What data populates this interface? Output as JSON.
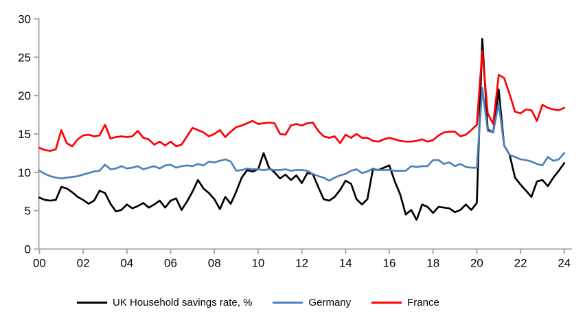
{
  "chart_data": {
    "type": "line",
    "title": "",
    "x_unit": "quarterly",
    "x_start_year": 2000,
    "x_end_year": 2024,
    "x_tick_years": [
      0,
      2,
      4,
      6,
      8,
      10,
      12,
      14,
      16,
      18,
      20,
      22,
      24
    ],
    "x_tick_labels": [
      "00",
      "02",
      "04",
      "06",
      "08",
      "10",
      "12",
      "14",
      "16",
      "18",
      "20",
      "22",
      "24"
    ],
    "ylim": [
      0,
      30
    ],
    "y_ticks": [
      0,
      5,
      10,
      15,
      20,
      25,
      30
    ],
    "y_tick_labels": [
      "0",
      "5",
      "10",
      "15",
      "20",
      "25",
      "30"
    ],
    "grid": false,
    "legend_position": "bottom",
    "axis_color": "#A6A6A6",
    "text_color": "#000000",
    "background": "#FFFFFF",
    "series": [
      {
        "name": "UK Household savings rate, %",
        "color": "#000000",
        "values": [
          6.7,
          6.4,
          6.3,
          6.4,
          8.1,
          7.9,
          7.4,
          6.8,
          6.4,
          5.9,
          6.3,
          7.6,
          7.3,
          5.9,
          4.9,
          5.1,
          5.8,
          5.3,
          5.6,
          6.0,
          5.4,
          5.8,
          6.3,
          5.4,
          6.3,
          6.6,
          5.1,
          6.2,
          7.5,
          9.0,
          7.9,
          7.3,
          6.5,
          5.2,
          6.8,
          5.9,
          7.5,
          9.3,
          10.3,
          10.1,
          10.4,
          12.5,
          10.6,
          10.0,
          9.2,
          9.7,
          9.0,
          9.6,
          8.6,
          9.9,
          9.8,
          8.1,
          6.5,
          6.3,
          6.8,
          7.7,
          8.9,
          8.5,
          6.5,
          5.8,
          6.5,
          10.4,
          10.3,
          10.6,
          10.9,
          8.8,
          7.1,
          4.5,
          5.1,
          3.8,
          5.8,
          5.5,
          4.7,
          5.5,
          5.4,
          5.3,
          4.8,
          5.1,
          5.8,
          5.1,
          6.0,
          27.4,
          15.6,
          15.2,
          20.8,
          13.5,
          12.3,
          9.3,
          8.4,
          7.6,
          6.8,
          8.8,
          9.0,
          8.2,
          9.3,
          10.2,
          11.2
        ]
      },
      {
        "name": "Germany",
        "color": "#4F81BD",
        "values": [
          10.2,
          9.8,
          9.5,
          9.3,
          9.2,
          9.3,
          9.4,
          9.5,
          9.7,
          9.9,
          10.1,
          10.2,
          11.0,
          10.4,
          10.5,
          10.8,
          10.5,
          10.6,
          10.8,
          10.4,
          10.6,
          10.8,
          10.5,
          10.9,
          11.0,
          10.6,
          10.8,
          10.9,
          10.8,
          11.1,
          10.9,
          11.4,
          11.3,
          11.5,
          11.7,
          11.4,
          10.2,
          10.3,
          10.5,
          10.4,
          10.4,
          10.3,
          10.4,
          10.3,
          10.3,
          10.4,
          10.2,
          10.3,
          10.3,
          10.2,
          9.8,
          9.5,
          9.3,
          8.9,
          9.3,
          9.6,
          9.8,
          10.2,
          10.4,
          9.9,
          10.1,
          10.5,
          10.3,
          10.3,
          10.3,
          10.2,
          10.2,
          10.2,
          10.8,
          10.7,
          10.8,
          10.8,
          11.6,
          11.6,
          11.1,
          11.3,
          10.8,
          11.1,
          10.7,
          10.6,
          10.6,
          21.0,
          15.4,
          15.2,
          19.0,
          13.5,
          12.3,
          12.0,
          11.7,
          11.6,
          11.4,
          11.1,
          10.9,
          12.0,
          11.5,
          11.7,
          12.5
        ]
      },
      {
        "name": "France",
        "color": "#FF0000",
        "values": [
          13.2,
          12.9,
          12.8,
          13.0,
          15.5,
          13.8,
          13.4,
          14.3,
          14.8,
          14.9,
          14.7,
          14.8,
          16.2,
          14.4,
          14.6,
          14.7,
          14.6,
          14.7,
          15.4,
          14.5,
          14.3,
          13.6,
          14.0,
          13.5,
          14.0,
          13.4,
          13.6,
          14.7,
          15.8,
          15.5,
          15.2,
          14.7,
          15.0,
          15.5,
          14.6,
          15.3,
          15.9,
          16.1,
          16.4,
          16.7,
          16.3,
          16.4,
          16.5,
          16.4,
          15.0,
          14.9,
          16.1,
          16.3,
          16.1,
          16.4,
          16.5,
          15.4,
          14.7,
          14.5,
          14.7,
          13.8,
          14.9,
          14.5,
          15.0,
          14.5,
          14.5,
          14.1,
          14.0,
          14.3,
          14.5,
          14.3,
          14.1,
          14.0,
          14.0,
          14.1,
          14.3,
          14.0,
          14.2,
          14.8,
          15.2,
          15.3,
          15.3,
          14.7,
          14.9,
          15.5,
          16.2,
          25.8,
          17.7,
          16.3,
          22.7,
          22.3,
          20.2,
          17.9,
          17.7,
          18.2,
          18.1,
          16.7,
          18.8,
          18.4,
          18.2,
          18.1,
          18.4
        ]
      }
    ]
  }
}
